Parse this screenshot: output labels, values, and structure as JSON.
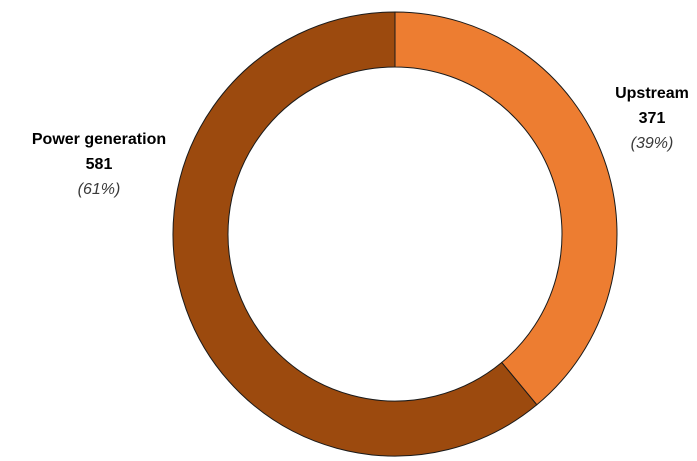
{
  "chart_data": {
    "type": "pie",
    "donut": true,
    "title": "",
    "categories": [
      "Upstream",
      "Power generation"
    ],
    "values": [
      371,
      581
    ],
    "percent_labels": [
      "(39%)",
      "(61%)"
    ],
    "colors": [
      "#ED7D31",
      "#9C4A0E"
    ],
    "start": "top, clockwise",
    "legend": "none (labels beside slices)"
  }
}
